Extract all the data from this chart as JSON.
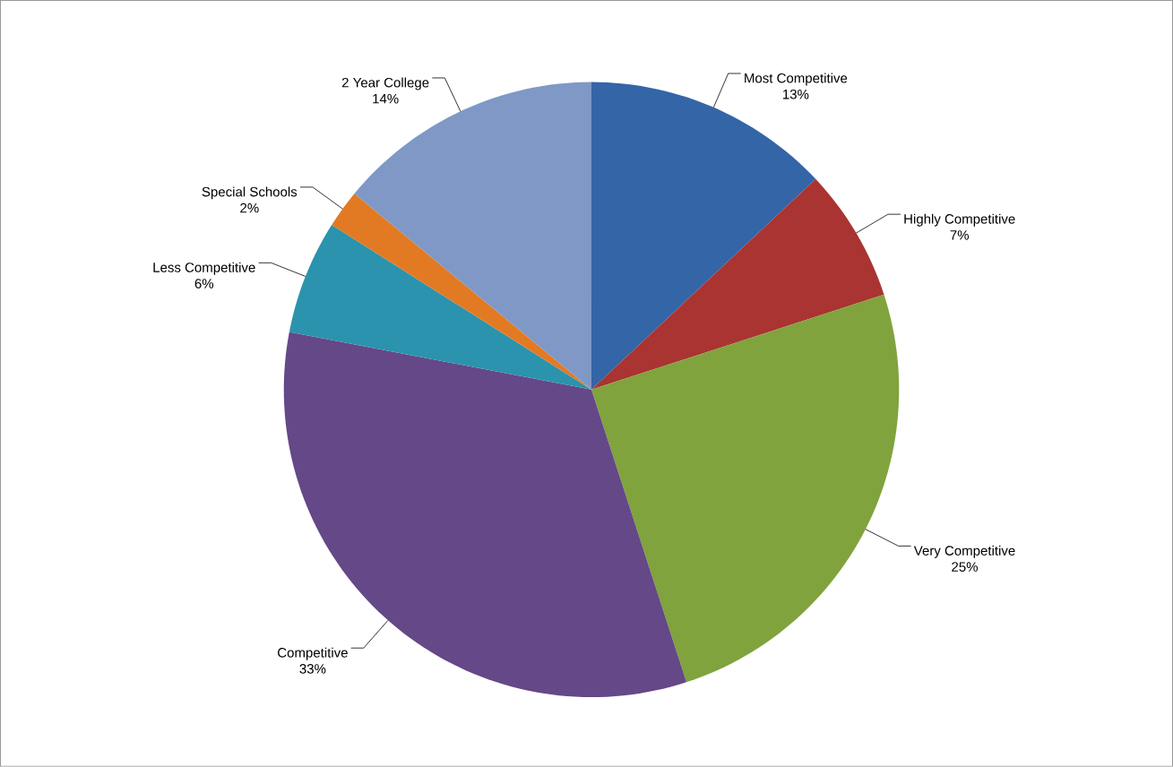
{
  "chart_data": {
    "type": "pie",
    "categories": [
      "Most Competitive",
      "Highly Competitive",
      "Very Competitive",
      "Competitive",
      "Less Competitive",
      "Special Schools",
      "2 Year College"
    ],
    "values": [
      13,
      7,
      25,
      33,
      6,
      2,
      14
    ],
    "value_labels": [
      "13%",
      "7%",
      "25%",
      "33%",
      "6%",
      "2%",
      "14%"
    ],
    "colors": [
      "#3465a6",
      "#a93432",
      "#80a33d",
      "#654887",
      "#2b93ad",
      "#e27a24",
      "#7f98c5"
    ]
  }
}
